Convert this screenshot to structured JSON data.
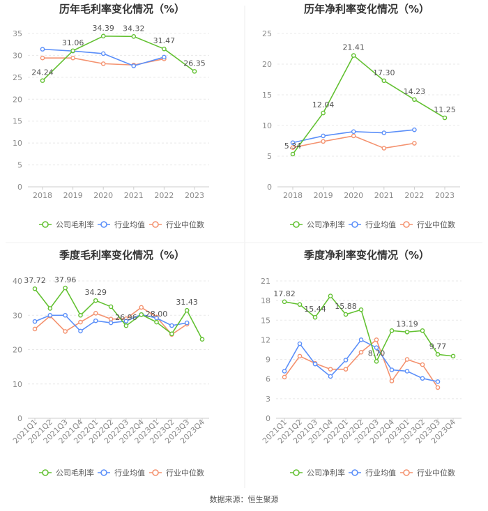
{
  "colors": {
    "company": "#63c132",
    "industry_avg": "#5b8ff9",
    "industry_median": "#f4926f",
    "grid": "#e8e8e8",
    "axis": "#cccccc"
  },
  "source": "数据来源：恒生聚源",
  "chart_data": [
    {
      "type": "line",
      "title": "历年毛利率变化情况（%）",
      "categories": [
        "2018",
        "2019",
        "2020",
        "2021",
        "2022",
        "2023"
      ],
      "ylim": [
        0,
        35
      ],
      "yticks": [
        "0",
        "5",
        "10",
        "15",
        "20",
        "25",
        "30",
        "35"
      ],
      "rotate_x": false,
      "series": [
        {
          "name": "公司毛利率",
          "key": "company",
          "values": [
            24.24,
            31.06,
            34.39,
            34.32,
            31.47,
            26.35
          ],
          "labels": [
            "24.24",
            "31.06",
            "34.39",
            "34.32",
            "31.47",
            "26.35"
          ]
        },
        {
          "name": "行业均值",
          "key": "industry_avg",
          "values": [
            31.4,
            31.0,
            30.4,
            27.6,
            29.6,
            null
          ]
        },
        {
          "name": "行业中位数",
          "key": "industry_median",
          "values": [
            29.4,
            29.4,
            28.1,
            27.8,
            29.2,
            null
          ]
        }
      ]
    },
    {
      "type": "line",
      "title": "历年净利率变化情况（%）",
      "categories": [
        "2018",
        "2019",
        "2020",
        "2021",
        "2022",
        "2023"
      ],
      "ylim": [
        0,
        25
      ],
      "yticks": [
        "0",
        "5",
        "10",
        "15",
        "20",
        "25"
      ],
      "rotate_x": false,
      "series": [
        {
          "name": "公司净利率",
          "key": "company",
          "values": [
            5.34,
            12.04,
            21.41,
            17.3,
            14.23,
            11.25
          ],
          "labels": [
            "5.34",
            "12.04",
            "21.41",
            "17.30",
            "14.23",
            "11.25"
          ]
        },
        {
          "name": "行业均值",
          "key": "industry_avg",
          "values": [
            7.2,
            8.3,
            9.0,
            8.8,
            9.3,
            null
          ]
        },
        {
          "name": "行业中位数",
          "key": "industry_median",
          "values": [
            6.4,
            7.4,
            8.3,
            6.3,
            7.1,
            null
          ]
        }
      ]
    },
    {
      "type": "line",
      "title": "季度毛利率变化情况（%）",
      "categories": [
        "2021Q1",
        "2021Q2",
        "2021Q3",
        "2021Q4",
        "2022Q1",
        "2022Q2",
        "2022Q3",
        "2022Q4",
        "2023Q1",
        "2023Q2",
        "2023Q3",
        "2023Q4"
      ],
      "ylim": [
        0,
        40
      ],
      "yticks": [
        "0",
        "10",
        "20",
        "30",
        "40"
      ],
      "rotate_x": true,
      "series": [
        {
          "name": "公司毛利率",
          "key": "company",
          "values": [
            37.72,
            32.0,
            37.96,
            30.0,
            34.29,
            32.5,
            26.96,
            30.2,
            28.0,
            24.6,
            31.43,
            23.0
          ],
          "labels": [
            "37.72",
            "",
            "37.96",
            "",
            "34.29",
            "",
            "26.96",
            "",
            "28.00",
            "",
            "31.43",
            ""
          ]
        },
        {
          "name": "行业均值",
          "key": "industry_avg",
          "values": [
            28.2,
            30.0,
            30.0,
            25.4,
            28.4,
            27.8,
            28.3,
            30.2,
            29.2,
            27.0,
            27.8,
            null
          ]
        },
        {
          "name": "行业中位数",
          "key": "industry_median",
          "values": [
            26.0,
            29.8,
            25.3,
            28.0,
            30.6,
            28.9,
            29.0,
            32.3,
            29.5,
            24.4,
            27.4,
            null
          ]
        }
      ]
    },
    {
      "type": "line",
      "title": "季度净利率变化情况（%）",
      "categories": [
        "2021Q1",
        "2021Q2",
        "2021Q3",
        "2021Q4",
        "2022Q1",
        "2022Q2",
        "2022Q3",
        "2022Q4",
        "2023Q1",
        "2023Q2",
        "2023Q3",
        "2023Q4"
      ],
      "ylim": [
        0,
        21
      ],
      "yticks": [
        "0",
        "3",
        "6",
        "9",
        "12",
        "15",
        "18",
        "21"
      ],
      "rotate_x": true,
      "series": [
        {
          "name": "公司净利率",
          "key": "company",
          "values": [
            17.82,
            17.4,
            15.44,
            18.7,
            15.88,
            16.6,
            8.7,
            13.4,
            13.19,
            13.4,
            9.77,
            9.5
          ],
          "labels": [
            "17.82",
            "",
            "15.44",
            "",
            "15.88",
            "",
            "8.70",
            "",
            "13.19",
            "",
            "9.77",
            ""
          ]
        },
        {
          "name": "行业均值",
          "key": "industry_avg",
          "values": [
            7.2,
            11.4,
            8.3,
            6.4,
            8.9,
            12.0,
            10.8,
            7.4,
            7.2,
            6.1,
            5.6,
            null
          ]
        },
        {
          "name": "行业中位数",
          "key": "industry_median",
          "values": [
            6.3,
            9.5,
            8.4,
            7.5,
            7.5,
            10.1,
            12.0,
            5.7,
            9.0,
            8.2,
            4.7,
            null
          ]
        }
      ]
    }
  ]
}
